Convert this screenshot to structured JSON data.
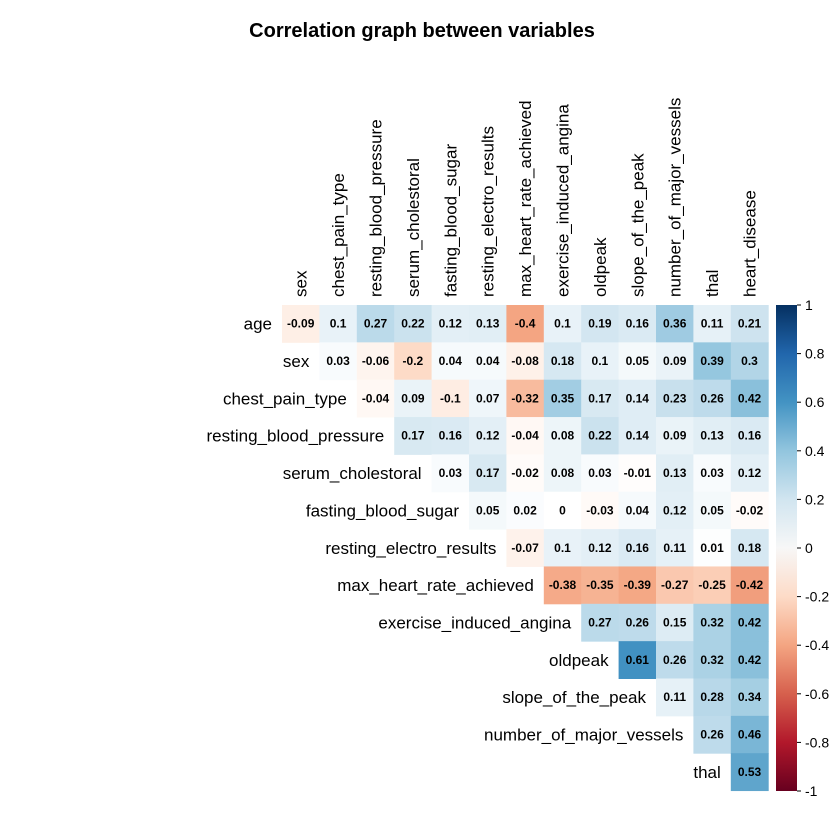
{
  "chart_data": {
    "type": "heatmap",
    "title": "Correlation graph between variables",
    "variables": [
      "age",
      "sex",
      "chest_pain_type",
      "resting_blood_pressure",
      "serum_cholestoral",
      "fasting_blood_sugar",
      "resting_electro_results",
      "max_heart_rate_achieved",
      "exercise_induced_angina",
      "oldpeak",
      "slope_of_the_peak",
      "number_of_major_vessels",
      "thal",
      "heart_disease"
    ],
    "row_labels": [
      "age",
      "sex",
      "chest_pain_type",
      "resting_blood_pressure",
      "serum_cholestoral",
      "fasting_blood_sugar",
      "resting_electro_results",
      "max_heart_rate_achieved",
      "exercise_induced_angina",
      "oldpeak",
      "slope_of_the_peak",
      "number_of_major_vessels",
      "thal"
    ],
    "col_labels": [
      "sex",
      "chest_pain_type",
      "resting_blood_pressure",
      "serum_cholestoral",
      "fasting_blood_sugar",
      "resting_electro_results",
      "max_heart_rate_achieved",
      "exercise_induced_angina",
      "oldpeak",
      "slope_of_the_peak",
      "number_of_major_vessels",
      "thal",
      "heart_disease"
    ],
    "matrix": [
      [
        -0.09,
        0.1,
        0.27,
        0.22,
        0.12,
        0.13,
        -0.4,
        0.1,
        0.19,
        0.16,
        0.36,
        0.11,
        0.21
      ],
      [
        0.03,
        -0.06,
        -0.2,
        0.04,
        0.04,
        -0.08,
        0.18,
        0.1,
        0.05,
        0.09,
        0.39,
        0.3
      ],
      [
        -0.04,
        0.09,
        -0.1,
        0.07,
        -0.32,
        0.35,
        0.17,
        0.14,
        0.23,
        0.26,
        0.42
      ],
      [
        0.17,
        0.16,
        0.12,
        -0.04,
        0.08,
        0.22,
        0.14,
        0.09,
        0.13,
        0.16
      ],
      [
        0.03,
        0.17,
        -0.02,
        0.08,
        0.03,
        -0.01,
        0.13,
        0.03,
        0.12
      ],
      [
        0.05,
        0.02,
        0,
        -0.03,
        0.04,
        0.12,
        0.05,
        -0.02
      ],
      [
        -0.07,
        0.1,
        0.12,
        0.16,
        0.11,
        0.01,
        0.18
      ],
      [
        -0.38,
        -0.35,
        -0.39,
        -0.27,
        -0.25,
        -0.42
      ],
      [
        0.27,
        0.26,
        0.15,
        0.32,
        0.42
      ],
      [
        0.61,
        0.26,
        0.32,
        0.42
      ],
      [
        0.11,
        0.28,
        0.34
      ],
      [
        0.26,
        0.46
      ],
      [
        0.53
      ]
    ],
    "color_scale": {
      "min": -1,
      "max": 1,
      "palette": "RdBu"
    },
    "legend": {
      "position": "right",
      "ticks": [
        "1",
        "0.8",
        "0.6",
        "0.4",
        "0.2",
        "0",
        "-0.2",
        "-0.4",
        "-0.6",
        "-0.8",
        "-1"
      ]
    },
    "colors": {
      "negative_end": "#67001f",
      "neutral": "#ffffff",
      "positive_end": "#053061"
    }
  }
}
